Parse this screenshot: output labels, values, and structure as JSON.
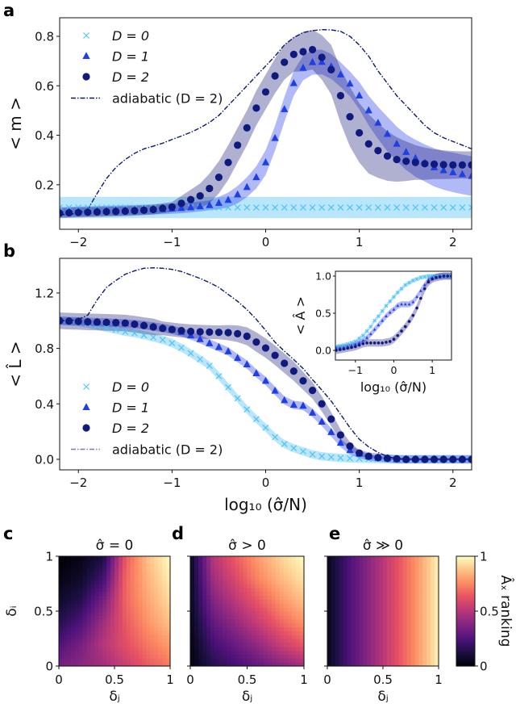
{
  "colors": {
    "D0": "#4fc3f7",
    "D1": "#1f3fe6",
    "D2": "#0f1a7e",
    "adiabatic": "#0b1870"
  },
  "panel_labels": {
    "a": "a",
    "b": "b",
    "c": "c",
    "d": "d",
    "e": "e"
  },
  "chart_data": [
    {
      "id": "a",
      "type": "scatter",
      "ylabel": "< m >",
      "xlabel": "",
      "xlim": [
        -2.2,
        2.2
      ],
      "ylim": [
        0.02,
        0.875
      ],
      "xticks": [
        -2,
        -1,
        0,
        1,
        2
      ],
      "xticklabels": [
        "−2",
        "−1",
        "0",
        "1",
        "2"
      ],
      "yticks": [
        0.2,
        0.4,
        0.6,
        0.8
      ],
      "yticklabels": [
        "0.2",
        "0.4",
        "0.6",
        "0.8"
      ],
      "legend_placement": "top-left",
      "x": [
        -2.2,
        -2.1,
        -2.0,
        -1.9,
        -1.8,
        -1.7,
        -1.6,
        -1.5,
        -1.4,
        -1.3,
        -1.2,
        -1.1,
        -1.0,
        -0.9,
        -0.8,
        -0.7,
        -0.6,
        -0.5,
        -0.4,
        -0.3,
        -0.2,
        -0.1,
        0.0,
        0.1,
        0.2,
        0.3,
        0.4,
        0.5,
        0.6,
        0.7,
        0.8,
        0.9,
        1.0,
        1.1,
        1.2,
        1.3,
        1.4,
        1.5,
        1.6,
        1.7,
        1.8,
        1.9,
        2.0,
        2.1,
        2.2
      ],
      "series": [
        {
          "name": "D = 0",
          "marker": "x",
          "color_key": "D0",
          "y": [
            0.108,
            0.108,
            0.108,
            0.108,
            0.108,
            0.108,
            0.108,
            0.108,
            0.108,
            0.108,
            0.108,
            0.108,
            0.108,
            0.108,
            0.108,
            0.108,
            0.108,
            0.108,
            0.108,
            0.108,
            0.108,
            0.108,
            0.108,
            0.108,
            0.108,
            0.108,
            0.108,
            0.108,
            0.108,
            0.108,
            0.108,
            0.108,
            0.108,
            0.108,
            0.108,
            0.108,
            0.108,
            0.108,
            0.108,
            0.108,
            0.108,
            0.108,
            0.108,
            0.108,
            0.108
          ],
          "err": 0.043
        },
        {
          "name": "D = 1",
          "marker": "triangle",
          "color_key": "D1",
          "y": [
            0.09,
            0.09,
            0.092,
            0.093,
            0.094,
            0.095,
            0.096,
            0.097,
            0.098,
            0.099,
            0.1,
            0.101,
            0.103,
            0.105,
            0.108,
            0.112,
            0.117,
            0.126,
            0.138,
            0.16,
            0.19,
            0.23,
            0.29,
            0.388,
            0.505,
            0.61,
            0.672,
            0.695,
            0.696,
            0.678,
            0.645,
            0.608,
            0.56,
            0.5,
            0.45,
            0.405,
            0.365,
            0.332,
            0.307,
            0.288,
            0.27,
            0.258,
            0.25,
            0.242,
            0.235
          ],
          "err": [
            0.02,
            0.02,
            0.02,
            0.02,
            0.02,
            0.02,
            0.02,
            0.02,
            0.02,
            0.02,
            0.02,
            0.02,
            0.02,
            0.02,
            0.02,
            0.02,
            0.02,
            0.025,
            0.03,
            0.035,
            0.04,
            0.045,
            0.05,
            0.05,
            0.05,
            0.05,
            0.05,
            0.05,
            0.05,
            0.05,
            0.05,
            0.05,
            0.055,
            0.06,
            0.065,
            0.07,
            0.07,
            0.072,
            0.075,
            0.075,
            0.077,
            0.078,
            0.08,
            0.08,
            0.08
          ]
        },
        {
          "name": "D = 2",
          "marker": "circle",
          "color_key": "D2",
          "y": [
            0.085,
            0.087,
            0.088,
            0.089,
            0.09,
            0.091,
            0.092,
            0.093,
            0.095,
            0.097,
            0.1,
            0.105,
            0.11,
            0.125,
            0.14,
            0.155,
            0.185,
            0.23,
            0.29,
            0.36,
            0.43,
            0.51,
            0.575,
            0.64,
            0.695,
            0.727,
            0.738,
            0.746,
            0.715,
            0.665,
            0.56,
            0.475,
            0.41,
            0.365,
            0.338,
            0.316,
            0.302,
            0.295,
            0.29,
            0.285,
            0.283,
            0.281,
            0.28,
            0.28,
            0.28
          ],
          "err": [
            0.02,
            0.02,
            0.02,
            0.02,
            0.02,
            0.02,
            0.02,
            0.02,
            0.02,
            0.02,
            0.02,
            0.02,
            0.02,
            0.03,
            0.04,
            0.05,
            0.06,
            0.065,
            0.07,
            0.07,
            0.07,
            0.07,
            0.07,
            0.07,
            0.07,
            0.07,
            0.08,
            0.08,
            0.09,
            0.1,
            0.11,
            0.12,
            0.12,
            0.12,
            0.11,
            0.1,
            0.09,
            0.08,
            0.07,
            0.065,
            0.06,
            0.058,
            0.056,
            0.055,
            0.055
          ]
        }
      ],
      "adiabatic": {
        "name": "adiabatic (D = 2)",
        "style": "dash-dot",
        "y": [
          0.08,
          0.08,
          0.085,
          0.1,
          0.165,
          0.225,
          0.27,
          0.302,
          0.327,
          0.345,
          0.356,
          0.368,
          0.383,
          0.397,
          0.412,
          0.43,
          0.452,
          0.48,
          0.52,
          0.56,
          0.6,
          0.64,
          0.68,
          0.72,
          0.765,
          0.795,
          0.815,
          0.823,
          0.827,
          0.826,
          0.82,
          0.8,
          0.765,
          0.72,
          0.66,
          0.61,
          0.56,
          0.52,
          0.48,
          0.44,
          0.41,
          0.39,
          0.375,
          0.36,
          0.345
        ]
      }
    },
    {
      "id": "b",
      "type": "scatter",
      "ylabel": "< L̂ >",
      "xlabel": "log₁₀ (σ̂/N)",
      "xlim": [
        -2.2,
        2.2
      ],
      "ylim": [
        -0.076,
        1.45
      ],
      "xticks": [
        -2,
        -1,
        0,
        1,
        2
      ],
      "xticklabels": [
        "−2",
        "−1",
        "0",
        "1",
        "2"
      ],
      "yticks": [
        0.0,
        0.4,
        0.8,
        1.2
      ],
      "yticklabels": [
        "0.0",
        "0.4",
        "0.8",
        "1.2"
      ],
      "legend_placement": "bottom-left",
      "x": [
        -2.2,
        -2.1,
        -2.0,
        -1.9,
        -1.8,
        -1.7,
        -1.6,
        -1.5,
        -1.4,
        -1.3,
        -1.2,
        -1.1,
        -1.0,
        -0.9,
        -0.8,
        -0.7,
        -0.6,
        -0.5,
        -0.4,
        -0.3,
        -0.2,
        -0.1,
        0.0,
        0.1,
        0.2,
        0.3,
        0.4,
        0.5,
        0.6,
        0.7,
        0.8,
        0.9,
        1.0,
        1.1,
        1.2,
        1.3,
        1.4,
        1.5,
        1.6,
        1.7,
        1.8,
        1.9,
        2.0,
        2.1,
        2.2
      ],
      "series": [
        {
          "name": "D = 0",
          "marker": "x",
          "color_key": "D0",
          "y": [
            1.0,
            0.995,
            0.99,
            0.98,
            0.965,
            0.95,
            0.935,
            0.92,
            0.91,
            0.895,
            0.88,
            0.862,
            0.838,
            0.805,
            0.765,
            0.722,
            0.675,
            0.6,
            0.52,
            0.44,
            0.36,
            0.29,
            0.228,
            0.16,
            0.11,
            0.08,
            0.058,
            0.035,
            0.022,
            0.015,
            0.01,
            0.007,
            0.005,
            0.003,
            0.002,
            0,
            0,
            0,
            0,
            0,
            0,
            0,
            0,
            0,
            0
          ],
          "err": 0.03
        },
        {
          "name": "D = 1",
          "marker": "triangle",
          "color_key": "D1",
          "y": [
            1.0,
            0.997,
            0.995,
            0.992,
            0.99,
            0.987,
            0.984,
            0.98,
            0.975,
            0.968,
            0.958,
            0.948,
            0.935,
            0.918,
            0.893,
            0.866,
            0.836,
            0.808,
            0.778,
            0.73,
            0.684,
            0.62,
            0.565,
            0.494,
            0.425,
            0.392,
            0.385,
            0.335,
            0.27,
            0.195,
            0.118,
            0.065,
            0.04,
            0.02,
            0.012,
            0.007,
            0,
            0,
            0,
            0,
            0,
            0,
            0,
            0,
            0
          ],
          "err": 0.03
        },
        {
          "name": "D = 2",
          "marker": "circle",
          "color_key": "D2",
          "y": [
            1.0,
            0.997,
            0.995,
            0.992,
            0.99,
            0.988,
            0.986,
            0.983,
            0.975,
            0.965,
            0.955,
            0.945,
            0.937,
            0.929,
            0.923,
            0.92,
            0.918,
            0.916,
            0.914,
            0.906,
            0.888,
            0.846,
            0.803,
            0.75,
            0.693,
            0.636,
            0.566,
            0.497,
            0.4,
            0.29,
            0.175,
            0.095,
            0.045,
            0.022,
            0.012,
            0.007,
            0.004,
            0,
            0,
            0,
            0,
            0,
            0,
            0,
            0
          ],
          "err": [
            0.06,
            0.06,
            0.06,
            0.06,
            0.06,
            0.06,
            0.06,
            0.06,
            0.06,
            0.06,
            0.06,
            0.05,
            0.05,
            0.05,
            0.05,
            0.05,
            0.05,
            0.05,
            0.055,
            0.06,
            0.065,
            0.07,
            0.07,
            0.07,
            0.07,
            0.07,
            0.065,
            0.06,
            0.055,
            0.05,
            0.04,
            0.03,
            0.02,
            0.015,
            0.01,
            0.01,
            0.01,
            0.01,
            0.01,
            0.01,
            0.01,
            0.01,
            0.01,
            0.01,
            0.01
          ]
        }
      ],
      "adiabatic": {
        "name": "adiabatic (D = 2)",
        "style": "dash-dot",
        "y": [
          1.0,
          1.0,
          1.01,
          1.04,
          1.15,
          1.24,
          1.29,
          1.335,
          1.36,
          1.378,
          1.382,
          1.378,
          1.37,
          1.355,
          1.33,
          1.305,
          1.275,
          1.24,
          1.19,
          1.14,
          1.08,
          1.01,
          0.93,
          0.845,
          0.78,
          0.72,
          0.655,
          0.575,
          0.5,
          0.42,
          0.325,
          0.228,
          0.145,
          0.09,
          0.05,
          0.02,
          0.005,
          0,
          0,
          0,
          0,
          0,
          0,
          0,
          0
        ]
      }
    },
    {
      "id": "b-inset",
      "type": "scatter",
      "ylabel": "< Â >",
      "xlabel": "log₁₀ (σ̂/N)",
      "xlim": [
        -1.52,
        1.5
      ],
      "ylim": [
        -0.13,
        1.065
      ],
      "xticks": [
        -1,
        0,
        1
      ],
      "xticklabels": [
        "−1",
        "0",
        "1"
      ],
      "yticks": [
        0.0,
        0.5,
        1.0
      ],
      "yticklabels": [
        "0.0",
        "0.5",
        "1.0"
      ],
      "x": [
        -1.5,
        -1.4,
        -1.3,
        -1.2,
        -1.1,
        -1.0,
        -0.9,
        -0.8,
        -0.7,
        -0.6,
        -0.5,
        -0.4,
        -0.3,
        -0.2,
        -0.1,
        0.0,
        0.1,
        0.2,
        0.3,
        0.4,
        0.5,
        0.6,
        0.7,
        0.8,
        0.9,
        1.0,
        1.1,
        1.2,
        1.3,
        1.4,
        1.5
      ],
      "series": [
        {
          "marker": "x",
          "color_key": "D0",
          "err": 0.03,
          "y": [
            0.05,
            0.06,
            0.07,
            0.085,
            0.1,
            0.12,
            0.16,
            0.2,
            0.26,
            0.32,
            0.4,
            0.46,
            0.53,
            0.6,
            0.66,
            0.72,
            0.78,
            0.83,
            0.88,
            0.91,
            0.94,
            0.96,
            0.98,
            0.99,
            1,
            1,
            1,
            1,
            1,
            1,
            1
          ]
        },
        {
          "marker": "triangle",
          "color_key": "D1",
          "err": 0.04,
          "y": [
            0.03,
            0.035,
            0.04,
            0.05,
            0.06,
            0.08,
            0.1,
            0.13,
            0.17,
            0.22,
            0.28,
            0.34,
            0.4,
            0.46,
            0.51,
            0.55,
            0.6,
            0.62,
            0.62,
            0.62,
            0.65,
            0.72,
            0.8,
            0.88,
            0.95,
            0.98,
            0.99,
            1,
            1,
            1,
            1
          ]
        },
        {
          "marker": "circle",
          "color_key": "D2",
          "err": 0.05,
          "y": [
            0,
            0.01,
            0.02,
            0.03,
            0.04,
            0.05,
            0.07,
            0.09,
            0.1,
            0.1,
            0.1,
            0.1,
            0.1,
            0.11,
            0.12,
            0.15,
            0.2,
            0.26,
            0.32,
            0.39,
            0.47,
            0.57,
            0.7,
            0.83,
            0.92,
            0.96,
            0.98,
            0.99,
            1,
            1,
            1
          ]
        }
      ]
    },
    {
      "id": "c",
      "type": "heatmap",
      "title": "σ̂ = 0",
      "xlabel": "δⱼ",
      "ylabel": "δᵢ",
      "colormap": "magma",
      "xlim": [
        0,
        1
      ],
      "ylim": [
        0,
        1
      ],
      "xticklabels": [
        "0",
        "0.5",
        "1"
      ],
      "yticklabels": [
        "0",
        "0.5",
        "1"
      ],
      "grid_x": [
        0,
        0.2,
        0.4,
        0.6,
        0.8,
        1.0
      ],
      "grid_y": [
        0,
        0.2,
        0.4,
        0.6,
        0.8,
        1.0
      ],
      "z": [
        [
          0.35,
          0.4,
          0.45,
          0.55,
          0.65,
          0.72
        ],
        [
          0.25,
          0.35,
          0.5,
          0.62,
          0.72,
          0.8
        ],
        [
          0.15,
          0.25,
          0.45,
          0.65,
          0.78,
          0.88
        ],
        [
          0.08,
          0.15,
          0.35,
          0.68,
          0.82,
          0.93
        ],
        [
          0.03,
          0.08,
          0.22,
          0.68,
          0.85,
          0.97
        ],
        [
          0.0,
          0.04,
          0.12,
          0.65,
          0.88,
          1.0
        ]
      ]
    },
    {
      "id": "d",
      "type": "heatmap",
      "title": "σ̂ > 0",
      "xlabel": "δⱼ",
      "colormap": "magma",
      "xlim": [
        0,
        1
      ],
      "ylim": [
        0,
        1
      ],
      "xticklabels": [
        "0",
        "0.5",
        "1"
      ],
      "grid_x": [
        0,
        0.2,
        0.4,
        0.6,
        0.8,
        1.0
      ],
      "grid_y": [
        0,
        0.2,
        0.4,
        0.6,
        0.8,
        1.0
      ],
      "z": [
        [
          0.02,
          0.15,
          0.22,
          0.3,
          0.38,
          0.45
        ],
        [
          0.03,
          0.22,
          0.32,
          0.42,
          0.55,
          0.65
        ],
        [
          0.04,
          0.3,
          0.42,
          0.55,
          0.68,
          0.78
        ],
        [
          0.05,
          0.38,
          0.52,
          0.65,
          0.78,
          0.88
        ],
        [
          0.05,
          0.45,
          0.6,
          0.75,
          0.86,
          0.95
        ],
        [
          0.05,
          0.5,
          0.66,
          0.8,
          0.92,
          1.0
        ]
      ]
    },
    {
      "id": "e",
      "type": "heatmap",
      "title": "σ̂ ≫ 0",
      "xlabel": "δⱼ",
      "colormap": "magma",
      "xlim": [
        0,
        1
      ],
      "ylim": [
        0,
        1
      ],
      "xticklabels": [
        "0",
        "0.5",
        "1"
      ],
      "grid_x": [
        0,
        0.2,
        0.4,
        0.6,
        0.8,
        1.0
      ],
      "grid_y": [
        0,
        0.2,
        0.4,
        0.6,
        0.8,
        1.0
      ],
      "z": [
        [
          0.05,
          0.25,
          0.42,
          0.6,
          0.78,
          0.98
        ],
        [
          0.05,
          0.25,
          0.42,
          0.6,
          0.78,
          0.98
        ],
        [
          0.05,
          0.25,
          0.42,
          0.6,
          0.78,
          0.98
        ],
        [
          0.05,
          0.25,
          0.42,
          0.6,
          0.78,
          0.98
        ],
        [
          0.05,
          0.25,
          0.42,
          0.6,
          0.78,
          0.98
        ],
        [
          0.05,
          0.25,
          0.42,
          0.6,
          0.78,
          0.98
        ]
      ]
    },
    {
      "id": "colorbar",
      "type": "colorbar",
      "colormap": "magma",
      "label": "Âₓ ranking",
      "range": [
        0,
        1
      ],
      "ticks": [
        0,
        0.5,
        1
      ],
      "ticklabels": [
        "0",
        "0.5",
        "1"
      ]
    }
  ]
}
